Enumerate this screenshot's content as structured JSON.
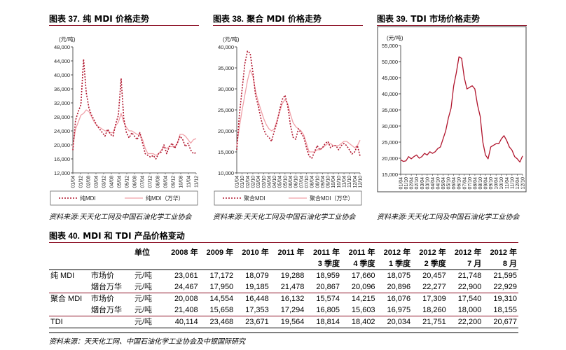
{
  "panels": [
    {
      "title_num": "图表 37.",
      "title": "纯 MDI 价格走势",
      "unit": "(元/吨)",
      "source": "资料来源:天天化工网及中国石油化学工业协会",
      "legend": [
        "纯MDI",
        "纯MDI（万华）"
      ]
    },
    {
      "title_num": "图表 38.",
      "title": "聚合 MDI 价格走势",
      "unit": "(元/吨)",
      "source": "资料来源:天天化工网及中国石油化学工业协会",
      "legend": [
        "聚合MDI",
        "聚合MDI（万华）"
      ]
    },
    {
      "title_num": "图表 39.",
      "title": "TDI 市场价格走势",
      "unit": "(元/吨)",
      "source": "资料来源:天天化工网及中国石油化学工业协会",
      "legend": []
    }
  ],
  "chart_data": [
    {
      "type": "line",
      "title": "纯 MDI 价格走势",
      "ylabel": "(元/吨)",
      "ylim": [
        12000,
        48000
      ],
      "yticks": [
        12000,
        16000,
        20000,
        24000,
        28000,
        32000,
        36000,
        40000,
        44000,
        48000
      ],
      "ytick_labels": [
        "12,000",
        "16,000",
        "20,000",
        "24,000",
        "28,000",
        "32,000",
        "36,000",
        "40,000",
        "44,000",
        "48,000"
      ],
      "categories": [
        "01/04",
        "01/07",
        "01/10",
        "02/01",
        "02/04",
        "02/07",
        "02/10",
        "03/01",
        "03/04",
        "03/07",
        "03/10",
        "04/01",
        "04/04",
        "04/07",
        "04/10",
        "05/01",
        "05/04",
        "05/07",
        "05/10",
        "06/01",
        "06/04",
        "06/07",
        "06/10",
        "07/01",
        "07/04",
        "07/07",
        "07/10",
        "08/01",
        "08/04",
        "08/07",
        "08/10",
        "09/01",
        "09/04",
        "09/07",
        "09/10",
        "10/01",
        "10/04",
        "10/07",
        "10/10",
        "11/01",
        "11/04",
        "11/07",
        "11/10",
        "12/01",
        "12/04",
        "12/07",
        "12/10"
      ],
      "xtick_labels": [
        "01/04",
        "01/12",
        "02/08",
        "03/04",
        "03/12",
        "04/08",
        "05/04",
        "05/12",
        "06/08",
        "07/04",
        "07/12",
        "08/08",
        "09/04",
        "09/12",
        "10/08",
        "11/04",
        "11/12"
      ],
      "grid": false,
      "legend_position": "bottom",
      "series": [
        {
          "name": "纯MDI",
          "style": "dotted",
          "color": "#b0142c",
          "values": [
            18500,
            27000,
            29500,
            31500,
            44500,
            35000,
            30500,
            28500,
            27000,
            25500,
            24500,
            23500,
            22500,
            24500,
            23000,
            22500,
            26000,
            28500,
            39000,
            27500,
            23500,
            22000,
            23500,
            22500,
            21500,
            23500,
            20500,
            17500,
            17000,
            16500,
            17000,
            16000,
            17500,
            18000,
            20000,
            17500,
            19500,
            20500,
            19000,
            20500,
            22500,
            21500,
            19500,
            20500,
            18500,
            17500,
            17800
          ]
        },
        {
          "name": "纯MDI（万华）",
          "style": "solid",
          "color": "#f0a0a8",
          "values": [
            19500,
            24500,
            26500,
            28500,
            29000,
            30000,
            29500,
            28000,
            26500,
            25500,
            25000,
            24500,
            24000,
            24000,
            23500,
            23500,
            25500,
            26500,
            29000,
            26500,
            25000,
            24000,
            24000,
            23500,
            23000,
            23000,
            21500,
            19000,
            17500,
            17500,
            17500,
            17000,
            17500,
            18500,
            19500,
            19000,
            19500,
            19500,
            19500,
            20500,
            23000,
            23000,
            22500,
            21500,
            20500,
            21500,
            21800
          ]
        }
      ]
    },
    {
      "type": "line",
      "title": "聚合 MDI 价格走势",
      "ylabel": "(元/吨)",
      "ylim": [
        10000,
        40000
      ],
      "yticks": [
        10000,
        15000,
        20000,
        25000,
        30000,
        35000,
        40000
      ],
      "ytick_labels": [
        "10,000",
        "15,000",
        "20,000",
        "25,000",
        "30,000",
        "35,000",
        "40,000"
      ],
      "categories": [
        "01/04",
        "01/07",
        "01/10",
        "02/01",
        "02/04",
        "02/07",
        "02/10",
        "03/01",
        "03/04",
        "03/07",
        "03/10",
        "04/01",
        "04/04",
        "04/07",
        "04/10",
        "05/01",
        "05/04",
        "05/07",
        "05/10",
        "06/01",
        "06/04",
        "06/07",
        "06/10",
        "07/01",
        "07/04",
        "07/07",
        "07/10",
        "08/01",
        "08/04",
        "08/07",
        "08/10",
        "09/01",
        "09/04",
        "09/07",
        "09/10",
        "10/01",
        "10/04",
        "10/07",
        "10/10",
        "11/01",
        "11/04",
        "11/07",
        "11/10",
        "12/01",
        "12/04",
        "12/07",
        "12/10"
      ],
      "xtick_labels": [
        "01/04",
        "01/10",
        "02/04",
        "02/10",
        "03/04",
        "03/10",
        "04/04",
        "04/10",
        "05/04",
        "05/10",
        "06/04",
        "06/10",
        "07/04",
        "07/10",
        "08/04",
        "08/10",
        "09/04",
        "09/10",
        "10/04",
        "10/10",
        "11/04",
        "11/10",
        "12/04",
        "12/10"
      ],
      "grid": false,
      "legend_position": "bottom",
      "series": [
        {
          "name": "聚合MDI",
          "style": "dotted",
          "color": "#b0142c",
          "values": [
            15500,
            24000,
            30000,
            36000,
            39000,
            38500,
            34000,
            28500,
            26000,
            23000,
            20500,
            19000,
            18500,
            17500,
            20000,
            22000,
            25000,
            27500,
            28500,
            26000,
            21500,
            18500,
            18000,
            20500,
            19500,
            18500,
            16000,
            14000,
            13500,
            15000,
            16500,
            15500,
            16000,
            17000,
            17500,
            16000,
            16500,
            16500,
            15500,
            16500,
            17000,
            16500,
            15500,
            14500,
            15000,
            16500,
            14000
          ]
        },
        {
          "name": "聚合MDI（万华）",
          "style": "solid",
          "color": "#f0a0a8",
          "values": [
            16500,
            21000,
            25000,
            28500,
            32000,
            34500,
            33000,
            29500,
            27000,
            25000,
            23000,
            21500,
            20500,
            20000,
            20500,
            22500,
            24500,
            26500,
            27500,
            26500,
            24000,
            22000,
            21000,
            20500,
            20000,
            19000,
            17000,
            15000,
            15000,
            15000,
            15500,
            15500,
            16000,
            16500,
            17000,
            17000,
            16500,
            16500,
            16500,
            17000,
            17500,
            17500,
            17000,
            16500,
            16000,
            16500,
            17800
          ]
        }
      ]
    },
    {
      "type": "line",
      "title": "TDI 市场价格走势",
      "ylabel": "(元/吨)",
      "ylim": [
        15000,
        55000
      ],
      "yticks": [
        15000,
        20000,
        25000,
        30000,
        35000,
        40000,
        45000,
        50000,
        55000
      ],
      "ytick_labels": [
        "15,000",
        "20,000",
        "25,000",
        "30,000",
        "35,000",
        "40,000",
        "45,000",
        "50,000",
        "55,000"
      ],
      "categories": [
        "01/04",
        "01/07",
        "01/10",
        "02/01",
        "02/04",
        "02/07",
        "02/10",
        "03/01",
        "03/04",
        "03/07",
        "03/10",
        "04/01",
        "04/04",
        "04/07",
        "04/10",
        "05/01",
        "05/04",
        "05/07",
        "05/10",
        "06/01",
        "06/04",
        "06/07",
        "06/10",
        "07/01",
        "07/04",
        "07/07",
        "07/10",
        "08/01",
        "08/04",
        "08/07",
        "08/10",
        "09/01",
        "09/04",
        "09/07",
        "09/10",
        "10/01",
        "10/04",
        "10/07",
        "10/10",
        "11/01",
        "11/04",
        "11/07",
        "11/10",
        "12/01",
        "12/04",
        "12/07",
        "12/10"
      ],
      "xtick_labels": [
        "01/04",
        "01/10",
        "02/04",
        "02/10",
        "03/04",
        "03/10",
        "04/04",
        "04/10",
        "05/04",
        "05/10",
        "06/04",
        "06/10",
        "07/04",
        "07/10",
        "08/04",
        "08/10",
        "09/04",
        "09/10",
        "10/04",
        "10/10",
        "11/04",
        "11/10",
        "12/04",
        "12/10"
      ],
      "grid": false,
      "legend_position": "none",
      "series": [
        {
          "name": "",
          "style": "solid",
          "color": "#b0142c",
          "values": [
            19500,
            19000,
            19200,
            20500,
            19800,
            20500,
            21000,
            20000,
            20500,
            21500,
            21000,
            22000,
            21500,
            22000,
            23000,
            23500,
            26000,
            28500,
            32500,
            35500,
            42500,
            46500,
            51500,
            51000,
            45000,
            41500,
            42000,
            42500,
            41500,
            36500,
            33000,
            25000,
            21000,
            19800,
            23500,
            24000,
            24500,
            24500,
            26000,
            27000,
            25500,
            23500,
            22500,
            20500,
            19800,
            18800,
            20700
          ]
        }
      ]
    }
  ],
  "table": {
    "title_num": "图表 40.",
    "title": "MDI 和 TDI 产品价格变动",
    "headers_row1": [
      "",
      "",
      "单位",
      "2008 年",
      "2009 年",
      "2010 年",
      "2011 年",
      "2011 年",
      "2011 年",
      "2012 年",
      "2012 年",
      "2012 年",
      "2012 年"
    ],
    "headers_row2": [
      "",
      "",
      "",
      "",
      "",
      "",
      "",
      "3 季度",
      "4 季度",
      "1 季度",
      "2 季度",
      "7 月",
      "8 月"
    ],
    "rows": [
      [
        "纯 MDI",
        "市场价",
        "元/吨",
        "23,061",
        "17,172",
        "18,079",
        "19,288",
        "18,959",
        "17,660",
        "18,075",
        "20,457",
        "21,748",
        "21,595"
      ],
      [
        "",
        "烟台万华",
        "元/吨",
        "24,467",
        "17,950",
        "19,185",
        "21,478",
        "20,867",
        "20,096",
        "20,896",
        "22,277",
        "22,900",
        "22,929"
      ],
      [
        "聚合 MDI",
        "市场价",
        "元/吨",
        "20,008",
        "14,554",
        "16,448",
        "16,132",
        "15,574",
        "14,215",
        "16,076",
        "17,309",
        "17,540",
        "19,310"
      ],
      [
        "",
        "烟台万华",
        "元/吨",
        "21,408",
        "15,658",
        "17,353",
        "17,294",
        "16,805",
        "15,603",
        "16,975",
        "18,260",
        "18,000",
        "18,155"
      ],
      [
        "TDI",
        "",
        "元/吨",
        "40,114",
        "23,468",
        "23,671",
        "19,564",
        "18,814",
        "18,402",
        "20,034",
        "21,751",
        "22,200",
        "20,677"
      ]
    ],
    "source": "资料来源：天天化工网、中国石油化学工业协会及中银国际研究"
  }
}
